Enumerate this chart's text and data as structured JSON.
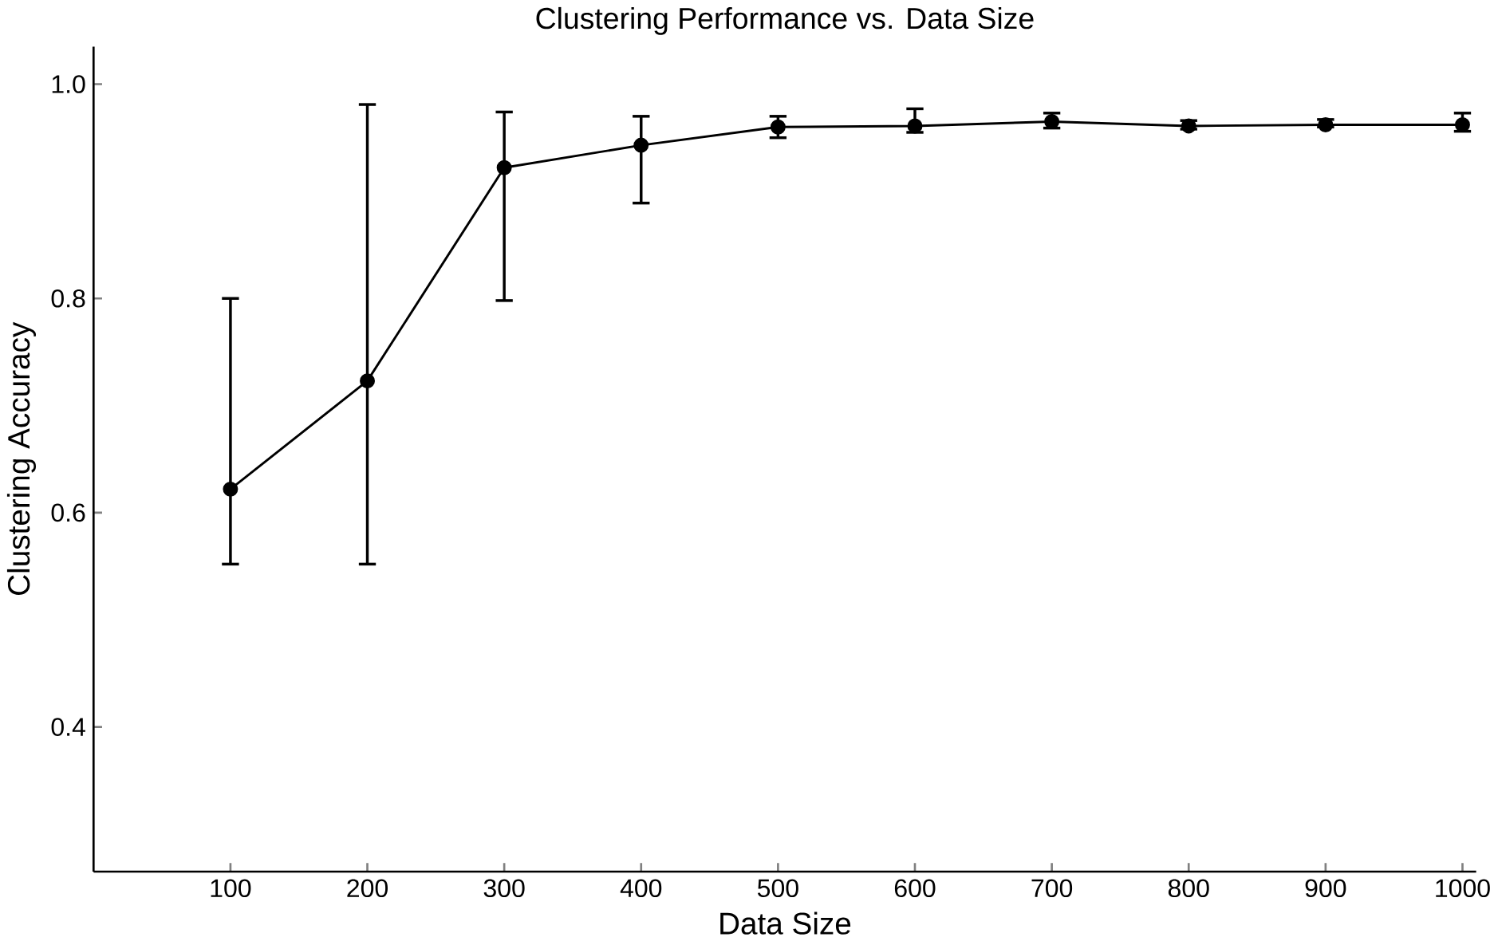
{
  "chart_data": {
    "type": "line",
    "title": "Clustering Performance vs. Data Size",
    "xlabel": "Data Size",
    "ylabel": "Clustering Accuracy",
    "x": [
      100,
      200,
      300,
      400,
      500,
      600,
      700,
      800,
      900,
      1000
    ],
    "series": [
      {
        "color": "#000000",
        "values": [
          0.622,
          0.723,
          0.922,
          0.943,
          0.96,
          0.961,
          0.965,
          0.961,
          0.962,
          0.962
        ],
        "errors": [
          [
            0.552,
            0.8
          ],
          [
            0.552,
            0.981
          ],
          [
            0.798,
            0.974
          ],
          [
            0.889,
            0.97
          ],
          [
            0.95,
            0.97
          ],
          [
            0.955,
            0.977
          ],
          [
            0.959,
            0.973
          ],
          [
            0.958,
            0.966
          ],
          [
            0.96,
            0.967
          ],
          [
            0.956,
            0.973
          ]
        ]
      }
    ],
    "xlim": [
      0,
      1010
    ],
    "ylim": [
      0.265,
      1.035
    ],
    "xticks": [
      100,
      200,
      300,
      400,
      500,
      600,
      700,
      800,
      900,
      1000
    ],
    "yticks": [
      {
        "value": 0.4,
        "label": "0.4"
      },
      {
        "value": 0.6,
        "label": "0.6"
      },
      {
        "value": 0.8,
        "label": "0.8"
      },
      {
        "value": 1.0,
        "label": "1.0"
      }
    ],
    "grid": false,
    "marker": "circle",
    "line_style": "solid"
  }
}
